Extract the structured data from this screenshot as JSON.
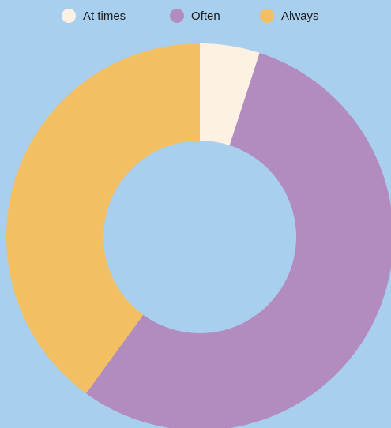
{
  "chart_data": {
    "type": "donut",
    "categories": [
      "At times",
      "Often",
      "Always"
    ],
    "values": [
      5,
      55,
      40
    ],
    "colors": [
      "#fdf1e3",
      "#b28cbf",
      "#f3bf63"
    ],
    "legend": "top"
  }
}
